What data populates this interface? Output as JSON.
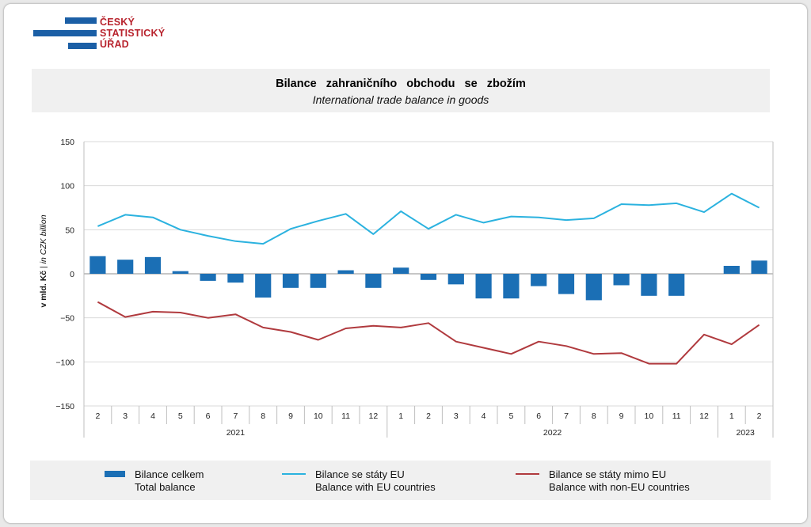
{
  "logo": {
    "line1": "ČESKÝ",
    "line2": "STATISTICKÝ",
    "line3": "ÚŘAD"
  },
  "title": {
    "cz": "Bilance  zahraničního  obchodu  se  zbožím",
    "en": "International trade balance in goods"
  },
  "axis": {
    "ylabel_cz": "v mld. Kč",
    "ylabel_sep": " | ",
    "ylabel_en": "in CZK billion"
  },
  "colors": {
    "bar": "#1b6fb5",
    "eu_line": "#2bb2df",
    "noneu_line": "#b03a3e",
    "grid": "#d9d9d9"
  },
  "legend": [
    {
      "line1": "Bilance celkem",
      "line2": "Total balance"
    },
    {
      "line1": "Bilance se státy EU",
      "line2": "Balance with EU countries"
    },
    {
      "line1": "Bilance se státy mimo EU",
      "line2": "Balance with non-EU countries"
    }
  ],
  "chart_data": {
    "type": "bar",
    "ylim": [
      -150,
      150
    ],
    "yticks": [
      150,
      100,
      50,
      0,
      -50,
      -100,
      -150
    ],
    "grid": true,
    "legend_position": "bottom",
    "categories": [
      "2",
      "3",
      "4",
      "5",
      "6",
      "7",
      "8",
      "9",
      "10",
      "11",
      "12",
      "1",
      "2",
      "3",
      "4",
      "5",
      "6",
      "7",
      "8",
      "9",
      "10",
      "11",
      "12",
      "1",
      "2"
    ],
    "year_groups": [
      {
        "label": "2021",
        "count": 11
      },
      {
        "label": "2022",
        "count": 12
      },
      {
        "label": "2023",
        "count": 2
      }
    ],
    "series": [
      {
        "name": "Bilance celkem",
        "type": "bar",
        "values": [
          20,
          16,
          19,
          3,
          -8,
          -10,
          -27,
          -16,
          -16,
          4,
          -16,
          7,
          -7,
          -12,
          -28,
          -28,
          -14,
          -23,
          -30,
          -13,
          -25,
          -25,
          0,
          9,
          15
        ]
      },
      {
        "name": "Bilance se státy EU",
        "type": "line",
        "values": [
          54,
          67,
          64,
          50,
          43,
          37,
          34,
          51,
          60,
          68,
          45,
          71,
          51,
          67,
          58,
          65,
          64,
          61,
          63,
          79,
          78,
          80,
          70,
          91,
          75
        ]
      },
      {
        "name": "Bilance se státy mimo EU",
        "type": "line",
        "values": [
          -32,
          -49,
          -43,
          -44,
          -50,
          -46,
          -61,
          -66,
          -75,
          -62,
          -59,
          -61,
          -56,
          -77,
          -84,
          -91,
          -77,
          -82,
          -91,
          -90,
          -102,
          -102,
          -69,
          -80,
          -58
        ]
      }
    ]
  }
}
